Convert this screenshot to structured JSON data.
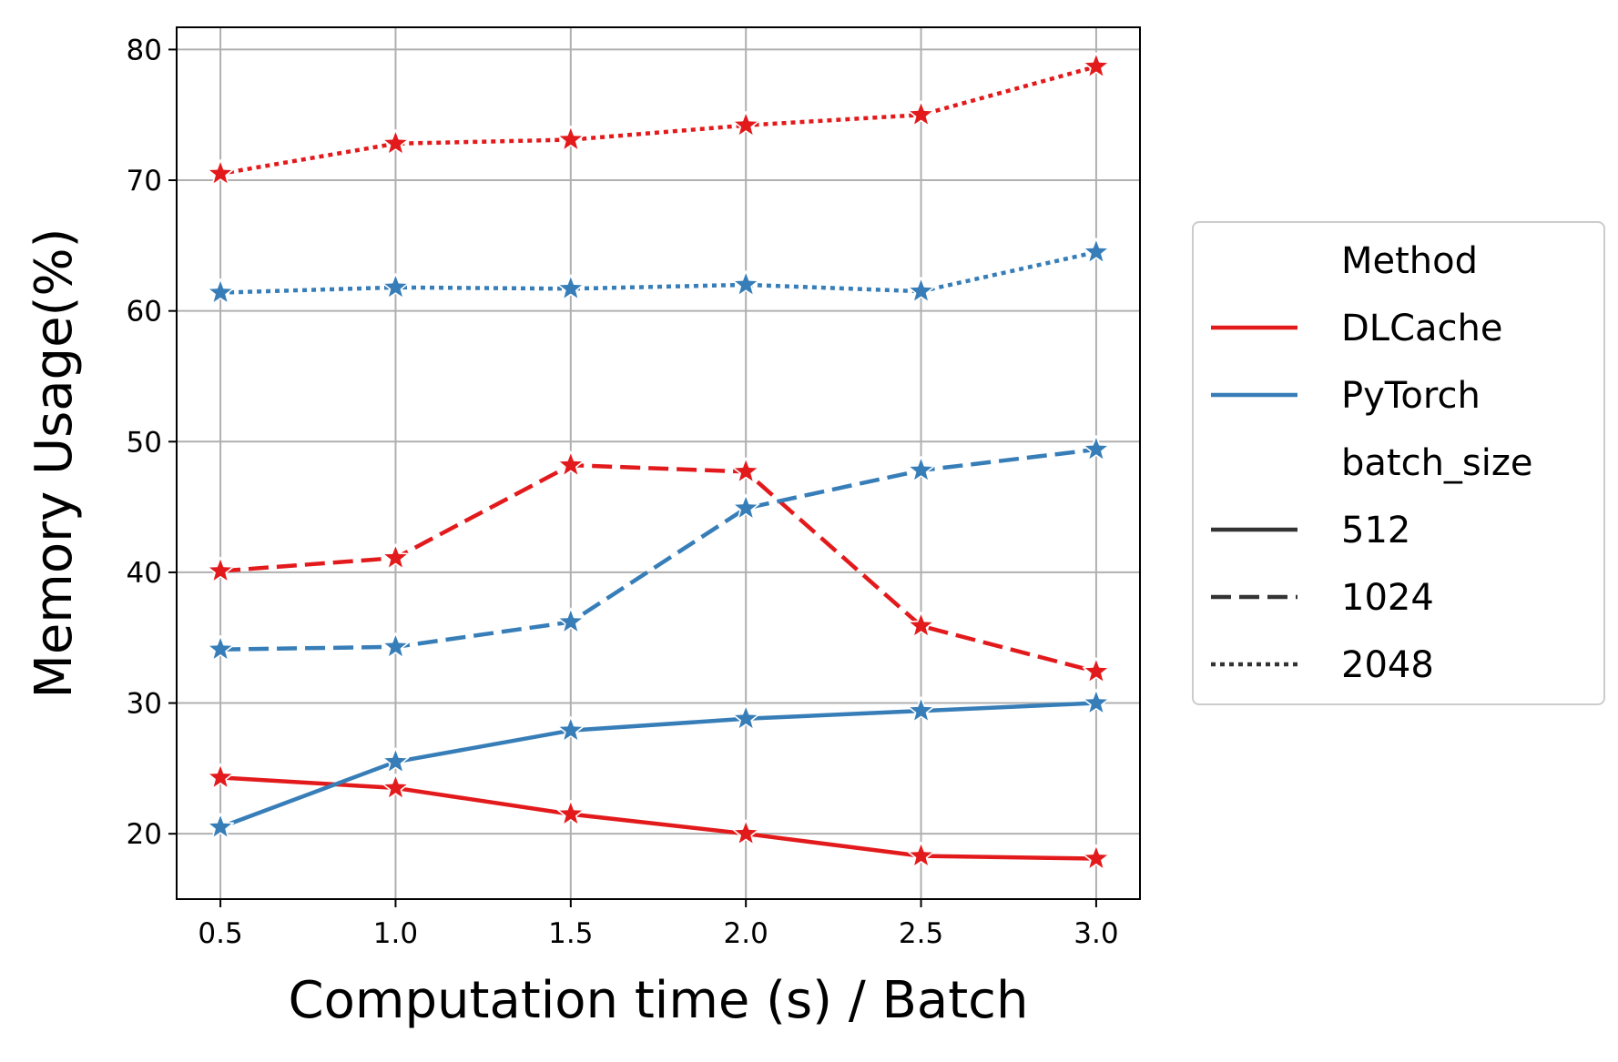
{
  "chart_data": {
    "type": "line",
    "title": "",
    "xlabel": "Computation time (s) / Batch",
    "ylabel": "Memory Usage(%)",
    "x": [
      0.5,
      1.0,
      1.5,
      2.0,
      2.5,
      3.0
    ],
    "x_tick_labels": [
      "0.5",
      "1.0",
      "1.5",
      "2.0",
      "2.5",
      "3.0"
    ],
    "y_ticks": [
      20,
      30,
      40,
      50,
      60,
      70,
      80
    ],
    "y_tick_labels": [
      "20",
      "30",
      "40",
      "50",
      "60",
      "70",
      "80"
    ],
    "xlim": [
      0.375,
      3.125
    ],
    "ylim": [
      15.0,
      81.7
    ],
    "grid": true,
    "legend_placement": "outside right",
    "marker": "star",
    "colors": {
      "DLCache": "#e31a1c",
      "PyTorch": "#377eb8"
    },
    "series": [
      {
        "method": "DLCache",
        "batch_size": "512",
        "style": "solid",
        "values": [
          24.3,
          23.5,
          21.5,
          20.0,
          18.3,
          18.1
        ]
      },
      {
        "method": "DLCache",
        "batch_size": "1024",
        "style": "dashed",
        "values": [
          40.1,
          41.1,
          48.2,
          47.7,
          35.9,
          32.4
        ]
      },
      {
        "method": "DLCache",
        "batch_size": "2048",
        "style": "dotted",
        "values": [
          70.5,
          72.8,
          73.1,
          74.2,
          75.0,
          78.7
        ]
      },
      {
        "method": "PyTorch",
        "batch_size": "512",
        "style": "solid",
        "values": [
          20.5,
          25.5,
          27.9,
          28.8,
          29.4,
          30.0
        ]
      },
      {
        "method": "PyTorch",
        "batch_size": "1024",
        "style": "dashed",
        "values": [
          34.1,
          34.3,
          36.2,
          44.9,
          47.8,
          49.4
        ]
      },
      {
        "method": "PyTorch",
        "batch_size": "2048",
        "style": "dotted",
        "values": [
          61.4,
          61.8,
          61.7,
          62.0,
          61.5,
          64.5
        ]
      }
    ],
    "legend": {
      "method_title": "Method",
      "methods": [
        "DLCache",
        "PyTorch"
      ],
      "batch_title": "batch_size",
      "batch_sizes": [
        "512",
        "1024",
        "2048"
      ]
    }
  }
}
